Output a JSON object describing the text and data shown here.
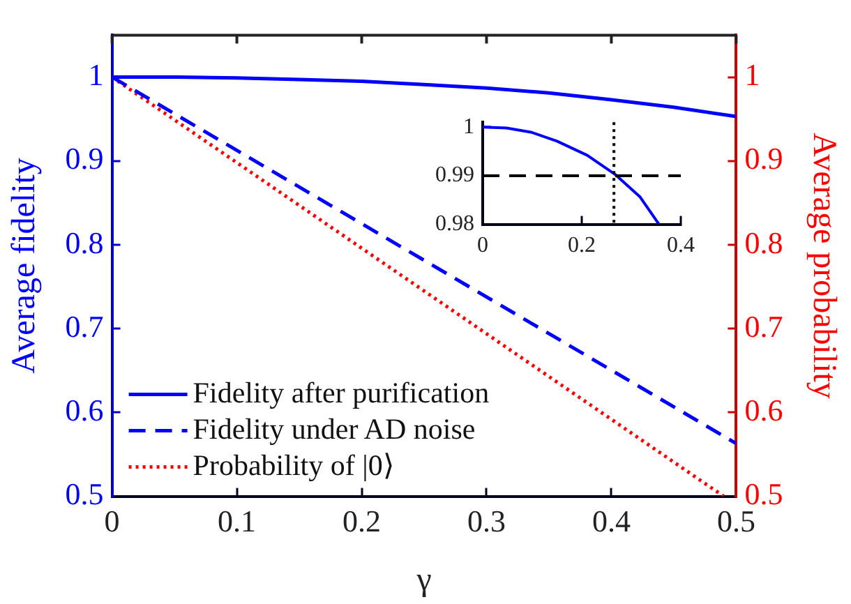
{
  "chart_data": [
    {
      "type": "line",
      "xlabel": "γ",
      "ylabel": "Average fidelity",
      "y2label": "Average probability",
      "xlim": [
        0,
        0.5
      ],
      "xticks": [
        0,
        0.1,
        0.2,
        0.3,
        0.4,
        0.5
      ],
      "ylim": [
        0.5,
        1.05
      ],
      "yticks": [
        0.5,
        0.6,
        0.7,
        0.8,
        0.9,
        1
      ],
      "y2lim": [
        0.5,
        1.05
      ],
      "y2ticks": [
        0.5,
        0.6,
        0.7,
        0.8,
        0.9,
        1
      ],
      "grid": false,
      "legend": "bottom left",
      "marker": "none",
      "series": [
        {
          "name": "Fidelity after purification",
          "color": "#0000ff",
          "line_style": "solid",
          "x": [
            0,
            0.05,
            0.1,
            0.15,
            0.2,
            0.25,
            0.3,
            0.35,
            0.4,
            0.45,
            0.5
          ],
          "values": [
            1,
            1,
            0.999,
            0.997,
            0.995,
            0.991,
            0.987,
            0.981,
            0.973,
            0.964,
            0.953
          ]
        },
        {
          "name": "Fidelity under AD noise",
          "color": "#0000ff",
          "line_style": "dashed",
          "x": [
            0,
            0.5
          ],
          "values": [
            1,
            0.563
          ]
        },
        {
          "name": "Probability of |0⟩",
          "color": "#ff0000",
          "line_style": "dotted",
          "axis": "y2",
          "x": [
            0,
            0.49
          ],
          "values": [
            1,
            0.5
          ]
        }
      ]
    },
    {
      "type": "line",
      "xlim": [
        0,
        0.4
      ],
      "xticks": [
        0,
        0.2,
        0.4
      ],
      "ylim": [
        0.98,
        1.001
      ],
      "yticks": [
        0.98,
        0.99,
        1
      ],
      "grid": false,
      "marker": "none",
      "series": [
        {
          "color": "#0000ff",
          "line_style": "solid",
          "x": [
            0,
            0.048,
            0.099,
            0.15,
            0.211,
            0.267,
            0.318,
            0.356
          ],
          "values": [
            1,
            0.9998,
            0.9989,
            0.9971,
            0.9942,
            0.9903,
            0.9856,
            0.98
          ]
        }
      ],
      "ref_lines": [
        {
          "axis": "y",
          "value": 0.99,
          "color": "#000000",
          "line_style": "dashed"
        },
        {
          "axis": "x",
          "value": 0.265,
          "color": "#000000",
          "line_style": "dotted"
        }
      ]
    }
  ]
}
